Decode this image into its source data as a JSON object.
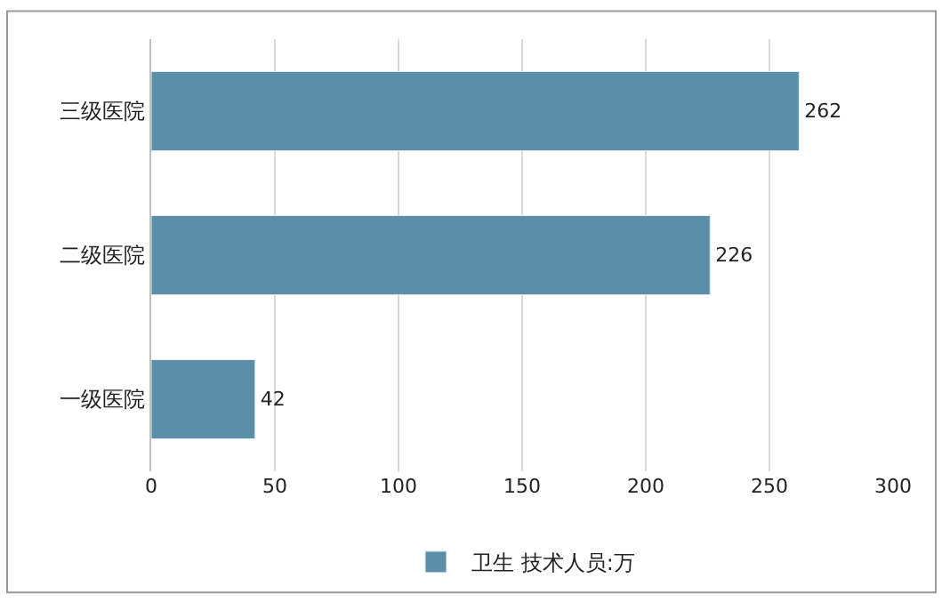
{
  "chart_data": {
    "type": "bar",
    "orientation": "horizontal",
    "categories": [
      "三级医院",
      "二级医院",
      "一级医院"
    ],
    "series": [
      {
        "name": "卫生 技术人员:万",
        "color": "#5b8fa8",
        "values": [
          262,
          226,
          42
        ]
      }
    ],
    "xlim": [
      0,
      300
    ],
    "xticks": [
      0,
      50,
      100,
      150,
      200,
      250,
      300
    ],
    "grid": "x",
    "legend": "bottom",
    "data_labels": true
  }
}
